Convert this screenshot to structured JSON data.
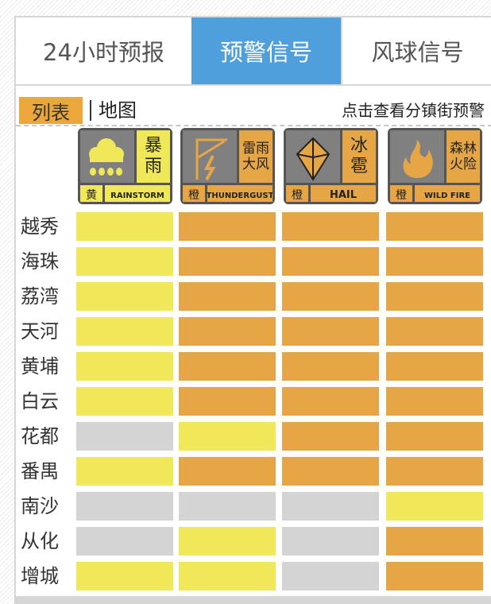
{
  "tabs": [
    {
      "label": "24小时预报",
      "active": false
    },
    {
      "label": "预警信号",
      "active": true
    },
    {
      "label": "风球信号",
      "active": false
    }
  ],
  "view": {
    "list_label": "列表",
    "map_label": "地图",
    "town_link": "点击查看分镇街预警"
  },
  "colors": {
    "yellow": "#f0e858",
    "orange": "#e6a646",
    "none": "#d4d4d4",
    "tab_active": "#4f9fdd"
  },
  "signals": [
    {
      "name": "暴雨",
      "level": "黄",
      "english": "RAINSTORM",
      "icon": "rain-cloud-icon",
      "color": "yellow"
    },
    {
      "name": "雷雨大风",
      "level": "橙",
      "english": "THUNDERGUST",
      "icon": "lightning-icon",
      "color": "orange"
    },
    {
      "name": "冰雹",
      "level": "橙",
      "english": "HAIL",
      "icon": "hail-icon",
      "color": "orange"
    },
    {
      "name": "森林火险",
      "level": "橙",
      "english": "WILD FIRE",
      "icon": "fire-icon",
      "color": "orange"
    }
  ],
  "districts": [
    {
      "name": "越秀",
      "levels": [
        "yellow",
        "orange",
        "orange",
        "orange"
      ]
    },
    {
      "name": "海珠",
      "levels": [
        "yellow",
        "orange",
        "orange",
        "orange"
      ]
    },
    {
      "name": "荔湾",
      "levels": [
        "yellow",
        "orange",
        "orange",
        "orange"
      ]
    },
    {
      "name": "天河",
      "levels": [
        "yellow",
        "orange",
        "orange",
        "orange"
      ]
    },
    {
      "name": "黄埔",
      "levels": [
        "yellow",
        "orange",
        "orange",
        "orange"
      ]
    },
    {
      "name": "白云",
      "levels": [
        "yellow",
        "orange",
        "orange",
        "orange"
      ]
    },
    {
      "name": "花都",
      "levels": [
        "none",
        "yellow",
        "orange",
        "orange"
      ]
    },
    {
      "name": "番禺",
      "levels": [
        "yellow",
        "orange",
        "orange",
        "orange"
      ]
    },
    {
      "name": "南沙",
      "levels": [
        "none",
        "none",
        "none",
        "yellow"
      ]
    },
    {
      "name": "从化",
      "levels": [
        "none",
        "yellow",
        "none",
        "orange"
      ]
    },
    {
      "name": "增城",
      "levels": [
        "yellow",
        "yellow",
        "none",
        "orange"
      ]
    }
  ]
}
